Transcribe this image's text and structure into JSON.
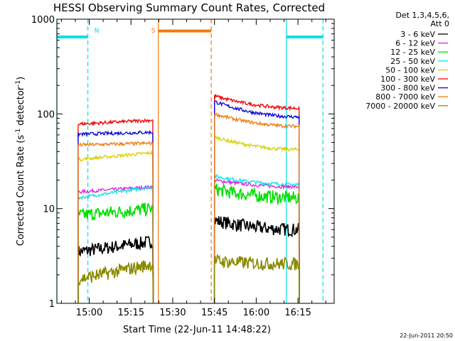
{
  "chart_data": {
    "type": "line",
    "title": "HESSI Observing Summary Count Rates, Corrected",
    "xlabel": "Start Time (22-Jun-11 14:48:22)",
    "ylabel": "Corrected Count Rate (s",
    "ylabel_sup1": "-1",
    "ylabel_mid": " detector",
    "ylabel_sup2": "-1",
    "ylabel_end": ")",
    "yscale": "log",
    "ylim": [
      1,
      1000
    ],
    "xlim": [
      "14:48:22",
      "16:28:00"
    ],
    "x_ticks": [
      "15:00",
      "15:15",
      "15:30",
      "15:45",
      "16:00",
      "16:15"
    ],
    "y_ticks": [
      "1",
      "10",
      "100",
      "1000"
    ],
    "legend_header": [
      "Det 1,3,4,5,6,",
      "Att 0"
    ],
    "stamp": "22-Jun-2011 20:50",
    "markers": [
      {
        "label": "N",
        "color": "#00e0e8"
      },
      {
        "label": "S",
        "color": "#f07a10"
      }
    ],
    "vertical_lines": [
      {
        "time": "14:48:22",
        "color": "#00e0e8",
        "style": "solid"
      },
      {
        "time": "14:59:30",
        "color": "#00e0e8",
        "style": "dashed"
      },
      {
        "time": "15:24:50",
        "color": "#f07a10",
        "style": "solid"
      },
      {
        "time": "15:43:50",
        "color": "#f07a10",
        "style": "dashed"
      },
      {
        "time": "16:10:50",
        "color": "#00e0e8",
        "style": "solid"
      },
      {
        "time": "16:24:00",
        "color": "#00e0e8",
        "style": "dashed"
      }
    ],
    "bars": [
      {
        "start": "14:48:22",
        "end": "14:59:30",
        "value": 650,
        "color": "#00e0e8"
      },
      {
        "start": "15:24:50",
        "end": "15:43:50",
        "value": 750,
        "color": "#f07a10"
      },
      {
        "start": "16:10:50",
        "end": "16:24:00",
        "value": 650,
        "color": "#00e0e8"
      }
    ],
    "segments": [
      {
        "start": "14:56:00",
        "end": "15:23:00"
      },
      {
        "start": "15:45:00",
        "end": "16:15:30"
      }
    ],
    "series": [
      {
        "name": "3 - 6 keV",
        "color": "#000000",
        "seg1": [
          3.5,
          4.5
        ],
        "seg2": [
          7.5,
          6.0
        ]
      },
      {
        "name": "6 - 12 keV",
        "color": "#e020e0",
        "seg1": [
          15,
          17
        ],
        "seg2": [
          20,
          17
        ]
      },
      {
        "name": "12 - 25 keV",
        "color": "#00e000",
        "seg1": [
          8.5,
          10
        ],
        "seg2": [
          16,
          13
        ]
      },
      {
        "name": "25 - 50 keV",
        "color": "#00e8e8",
        "seg1": [
          13,
          17
        ],
        "seg2": [
          22,
          18
        ]
      },
      {
        "name": "50 - 100 keV",
        "color": "#d8d000",
        "seg1": [
          33,
          39
        ],
        "seg2": [
          57,
          42
        ]
      },
      {
        "name": "100 - 300 keV",
        "color": "#f00000",
        "seg1": [
          78,
          86
        ],
        "seg2": [
          155,
          115
        ]
      },
      {
        "name": "300 - 800 keV",
        "color": "#0000e0",
        "seg1": [
          61,
          64
        ],
        "seg2": [
          135,
          93
        ]
      },
      {
        "name": "800 - 7000 keV",
        "color": "#f07a10",
        "seg1": [
          47,
          49
        ],
        "seg2": [
          100,
          74
        ]
      },
      {
        "name": "7000 - 20000 keV",
        "color": "#8a8a00",
        "seg1": [
          1.8,
          2.6
        ],
        "seg2": [
          2.8,
          2.6
        ]
      }
    ]
  }
}
